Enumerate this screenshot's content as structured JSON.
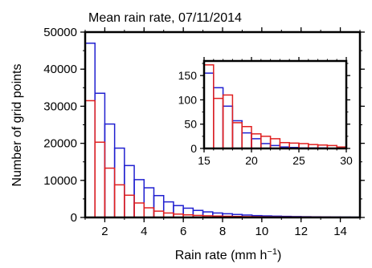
{
  "chart_data": [
    {
      "type": "bar",
      "title": "Mean rain rate, 07/11/2014",
      "xlabel": "Rain rate (mm h",
      "xlabel_sup": "−1",
      "xlabel_end": ")",
      "ylabel": "Number of grid points",
      "xlim": [
        1,
        15
      ],
      "ylim": [
        0,
        50000
      ],
      "xticks": [
        2,
        4,
        6,
        8,
        10,
        12,
        14
      ],
      "yticks": [
        0,
        10000,
        20000,
        30000,
        40000,
        50000
      ],
      "xtick_labels": [
        "2",
        "4",
        "6",
        "8",
        "10",
        "12",
        "14"
      ],
      "ytick_labels": [
        "0",
        "10000",
        "20000",
        "30000",
        "40000",
        "50000"
      ],
      "bin_width": 0.5,
      "bin_starts": [
        1,
        1.5,
        2,
        2.5,
        3,
        3.5,
        4,
        4.5,
        5,
        5.5,
        6,
        6.5,
        7,
        7.5,
        8,
        8.5,
        9,
        9.5,
        10,
        10.5,
        11,
        11.5,
        12,
        12.5,
        13,
        13.5,
        14,
        14.5
      ],
      "series": [
        {
          "color": "#2020d0",
          "values": [
            47000,
            33500,
            25200,
            18700,
            14000,
            10200,
            8000,
            5900,
            4200,
            3200,
            2500,
            1900,
            1500,
            1200,
            1000,
            800,
            650,
            500,
            420,
            350,
            290,
            240,
            200,
            170,
            140,
            120,
            100,
            80
          ]
        },
        {
          "color": "#e02020",
          "values": [
            31500,
            20300,
            13300,
            8800,
            6000,
            3900,
            2600,
            1700,
            1200,
            900,
            700,
            550,
            450,
            380,
            320,
            270,
            230,
            200,
            170,
            150,
            130,
            110,
            100,
            90,
            80,
            70,
            60,
            50
          ]
        }
      ]
    },
    {
      "type": "bar",
      "xlim": [
        15,
        30
      ],
      "ylim": [
        0,
        180
      ],
      "xticks": [
        15,
        20,
        25,
        30
      ],
      "yticks": [
        0,
        50,
        100,
        150
      ],
      "xtick_labels": [
        "15",
        "20",
        "25",
        "30"
      ],
      "ytick_labels": [
        "0",
        "50",
        "100",
        "150"
      ],
      "bin_width": 1,
      "bin_starts": [
        15,
        16,
        17,
        18,
        19,
        20,
        21,
        22,
        23,
        24,
        25,
        26,
        27,
        28,
        29
      ],
      "series": [
        {
          "color": "#2020d0",
          "values": [
            155,
            125,
            87,
            57,
            32,
            20,
            10,
            6,
            3,
            2,
            1,
            1,
            1,
            0,
            0
          ]
        },
        {
          "color": "#e02020",
          "values": [
            172,
            103,
            110,
            53,
            45,
            30,
            25,
            20,
            12,
            11,
            10,
            8,
            7,
            6,
            3
          ]
        }
      ]
    }
  ]
}
